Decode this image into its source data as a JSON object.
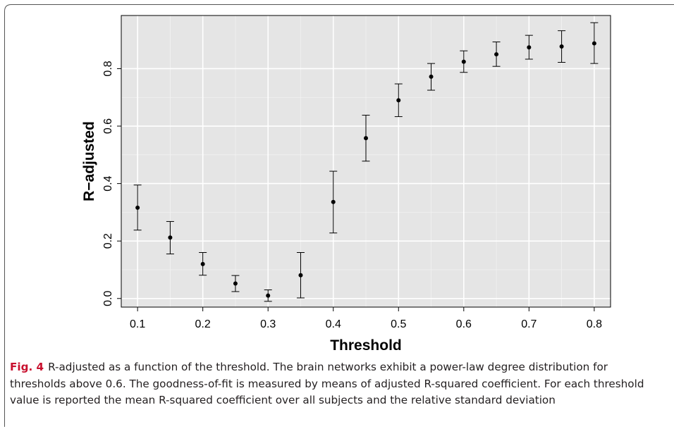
{
  "chart_data": {
    "type": "scatter",
    "xlabel": "Threshold",
    "ylabel": "R−adjusted",
    "x_ticks": [
      "0.1",
      "0.2",
      "0.3",
      "0.4",
      "0.5",
      "0.6",
      "0.7",
      "0.8"
    ],
    "y_ticks": [
      "0.0",
      "0.2",
      "0.4",
      "0.6",
      "0.8"
    ],
    "xlim": [
      0.075,
      0.825
    ],
    "ylim": [
      -0.03,
      0.985
    ],
    "grid": true,
    "points": [
      {
        "x": 0.1,
        "y": 0.316,
        "lower": 0.238,
        "upper": 0.395
      },
      {
        "x": 0.15,
        "y": 0.212,
        "lower": 0.155,
        "upper": 0.268
      },
      {
        "x": 0.2,
        "y": 0.12,
        "lower": 0.081,
        "upper": 0.16
      },
      {
        "x": 0.25,
        "y": 0.052,
        "lower": 0.024,
        "upper": 0.08
      },
      {
        "x": 0.3,
        "y": 0.01,
        "lower": -0.01,
        "upper": 0.03
      },
      {
        "x": 0.35,
        "y": 0.081,
        "lower": 0.002,
        "upper": 0.16
      },
      {
        "x": 0.4,
        "y": 0.336,
        "lower": 0.228,
        "upper": 0.443
      },
      {
        "x": 0.45,
        "y": 0.558,
        "lower": 0.478,
        "upper": 0.638
      },
      {
        "x": 0.5,
        "y": 0.69,
        "lower": 0.633,
        "upper": 0.747
      },
      {
        "x": 0.55,
        "y": 0.772,
        "lower": 0.725,
        "upper": 0.818
      },
      {
        "x": 0.6,
        "y": 0.824,
        "lower": 0.787,
        "upper": 0.862
      },
      {
        "x": 0.65,
        "y": 0.85,
        "lower": 0.808,
        "upper": 0.893
      },
      {
        "x": 0.7,
        "y": 0.874,
        "lower": 0.833,
        "upper": 0.916
      },
      {
        "x": 0.75,
        "y": 0.877,
        "lower": 0.822,
        "upper": 0.932
      },
      {
        "x": 0.8,
        "y": 0.888,
        "lower": 0.818,
        "upper": 0.96
      }
    ]
  },
  "caption": {
    "label": "Fig. 4",
    "text": "R-adjusted as a function of the threshold. The brain networks exhibit a power-law degree distribution for thresholds above 0.6. The goodness-of-fit is measured by means of adjusted R-squared coefficient. For each threshold value is reported the mean R-squared coefficient over all subjects and the relative standard deviation"
  }
}
